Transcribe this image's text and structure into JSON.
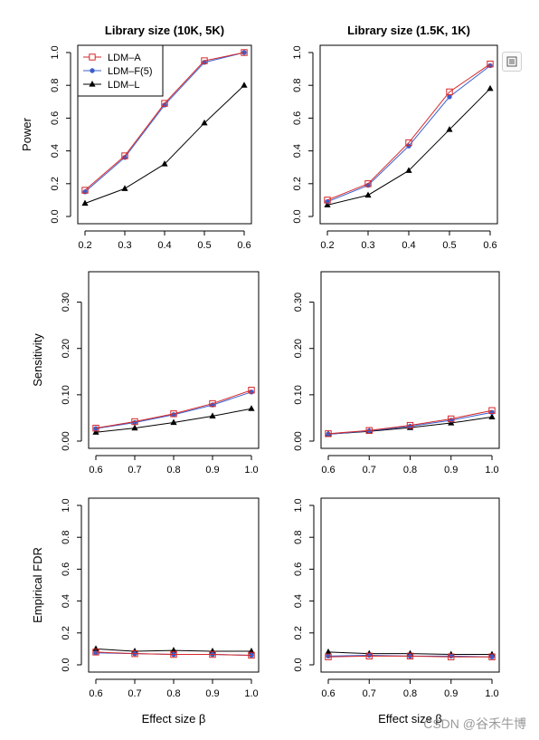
{
  "chart_data": [
    {
      "type": "line",
      "title": "Library size (10K, 5K)",
      "ylabel": "Power",
      "xlabel": "",
      "x": [
        0.2,
        0.3,
        0.4,
        0.5,
        0.6
      ],
      "xticks": [
        "0.2",
        "0.3",
        "0.4",
        "0.5",
        "0.6"
      ],
      "ylim": [
        0,
        1
      ],
      "yticks": [
        "0.0",
        "0.2",
        "0.4",
        "0.6",
        "0.8",
        "1.0"
      ],
      "legend": "top-left",
      "series": [
        {
          "name": "LDM–A",
          "values": [
            0.16,
            0.37,
            0.69,
            0.95,
            1.0
          ]
        },
        {
          "name": "LDM–F(5)",
          "values": [
            0.15,
            0.36,
            0.68,
            0.94,
            1.0
          ]
        },
        {
          "name": "LDM–L",
          "values": [
            0.08,
            0.17,
            0.32,
            0.57,
            0.8
          ]
        }
      ]
    },
    {
      "type": "line",
      "title": "Library size (1.5K, 1K)",
      "ylabel": "",
      "xlabel": "",
      "x": [
        0.2,
        0.3,
        0.4,
        0.5,
        0.6
      ],
      "xticks": [
        "0.2",
        "0.3",
        "0.4",
        "0.5",
        "0.6"
      ],
      "ylim": [
        0,
        1
      ],
      "yticks": [
        "0.0",
        "0.2",
        "0.4",
        "0.6",
        "0.8",
        "1.0"
      ],
      "series": [
        {
          "values": [
            0.1,
            0.2,
            0.45,
            0.76,
            0.93
          ]
        },
        {
          "values": [
            0.09,
            0.19,
            0.43,
            0.73,
            0.92
          ]
        },
        {
          "values": [
            0.07,
            0.13,
            0.28,
            0.53,
            0.78
          ]
        }
      ]
    },
    {
      "type": "line",
      "title": "",
      "ylabel": "Sensitivity",
      "xlabel": "",
      "x": [
        0.6,
        0.7,
        0.8,
        0.9,
        1.0
      ],
      "xticks": [
        "0.6",
        "0.7",
        "0.8",
        "0.9",
        "1.0"
      ],
      "ylim": [
        0,
        0.35
      ],
      "yticks": [
        "0.00",
        "0.10",
        "0.20",
        "0.30"
      ],
      "series": [
        {
          "values": [
            0.028,
            0.042,
            0.059,
            0.081,
            0.11
          ]
        },
        {
          "values": [
            0.027,
            0.04,
            0.057,
            0.078,
            0.106
          ]
        },
        {
          "values": [
            0.019,
            0.028,
            0.04,
            0.054,
            0.07
          ]
        }
      ]
    },
    {
      "type": "line",
      "title": "",
      "ylabel": "",
      "xlabel": "",
      "x": [
        0.6,
        0.7,
        0.8,
        0.9,
        1.0
      ],
      "xticks": [
        "0.6",
        "0.7",
        "0.8",
        "0.9",
        "1.0"
      ],
      "ylim": [
        0,
        0.35
      ],
      "yticks": [
        "0.00",
        "0.10",
        "0.20",
        "0.30"
      ],
      "series": [
        {
          "values": [
            0.016,
            0.023,
            0.034,
            0.048,
            0.066
          ]
        },
        {
          "values": [
            0.015,
            0.022,
            0.032,
            0.045,
            0.062
          ]
        },
        {
          "values": [
            0.015,
            0.021,
            0.029,
            0.039,
            0.052
          ]
        }
      ]
    },
    {
      "type": "line",
      "title": "",
      "ylabel": "Empirical FDR",
      "xlabel": "Effect size β",
      "x": [
        0.6,
        0.7,
        0.8,
        0.9,
        1.0
      ],
      "xticks": [
        "0.6",
        "0.7",
        "0.8",
        "0.9",
        "1.0"
      ],
      "ylim": [
        0,
        1
      ],
      "yticks": [
        "0.0",
        "0.2",
        "0.4",
        "0.6",
        "0.8",
        "1.0"
      ],
      "series": [
        {
          "values": [
            0.08,
            0.07,
            0.065,
            0.065,
            0.06
          ]
        },
        {
          "values": [
            0.075,
            0.07,
            0.065,
            0.065,
            0.06
          ]
        },
        {
          "values": [
            0.1,
            0.085,
            0.09,
            0.085,
            0.085
          ]
        }
      ]
    },
    {
      "type": "line",
      "title": "",
      "ylabel": "",
      "xlabel": "Effect size β",
      "x": [
        0.6,
        0.7,
        0.8,
        0.9,
        1.0
      ],
      "xticks": [
        "0.6",
        "0.7",
        "0.8",
        "0.9",
        "1.0"
      ],
      "ylim": [
        0,
        1
      ],
      "yticks": [
        "0.0",
        "0.2",
        "0.4",
        "0.6",
        "0.8",
        "1.0"
      ],
      "series": [
        {
          "values": [
            0.05,
            0.055,
            0.055,
            0.05,
            0.05
          ]
        },
        {
          "values": [
            0.055,
            0.06,
            0.055,
            0.055,
            0.05
          ]
        },
        {
          "values": [
            0.08,
            0.07,
            0.07,
            0.065,
            0.065
          ]
        }
      ]
    }
  ],
  "series_styles": [
    {
      "color": "#d62728",
      "marker": "open-square"
    },
    {
      "color": "#3a5fcd",
      "marker": "filled-circle"
    },
    {
      "color": "#000000",
      "marker": "filled-triangle"
    }
  ],
  "watermark": "CSDN @谷禾牛博",
  "corner_icon": "fullscreen-icon"
}
